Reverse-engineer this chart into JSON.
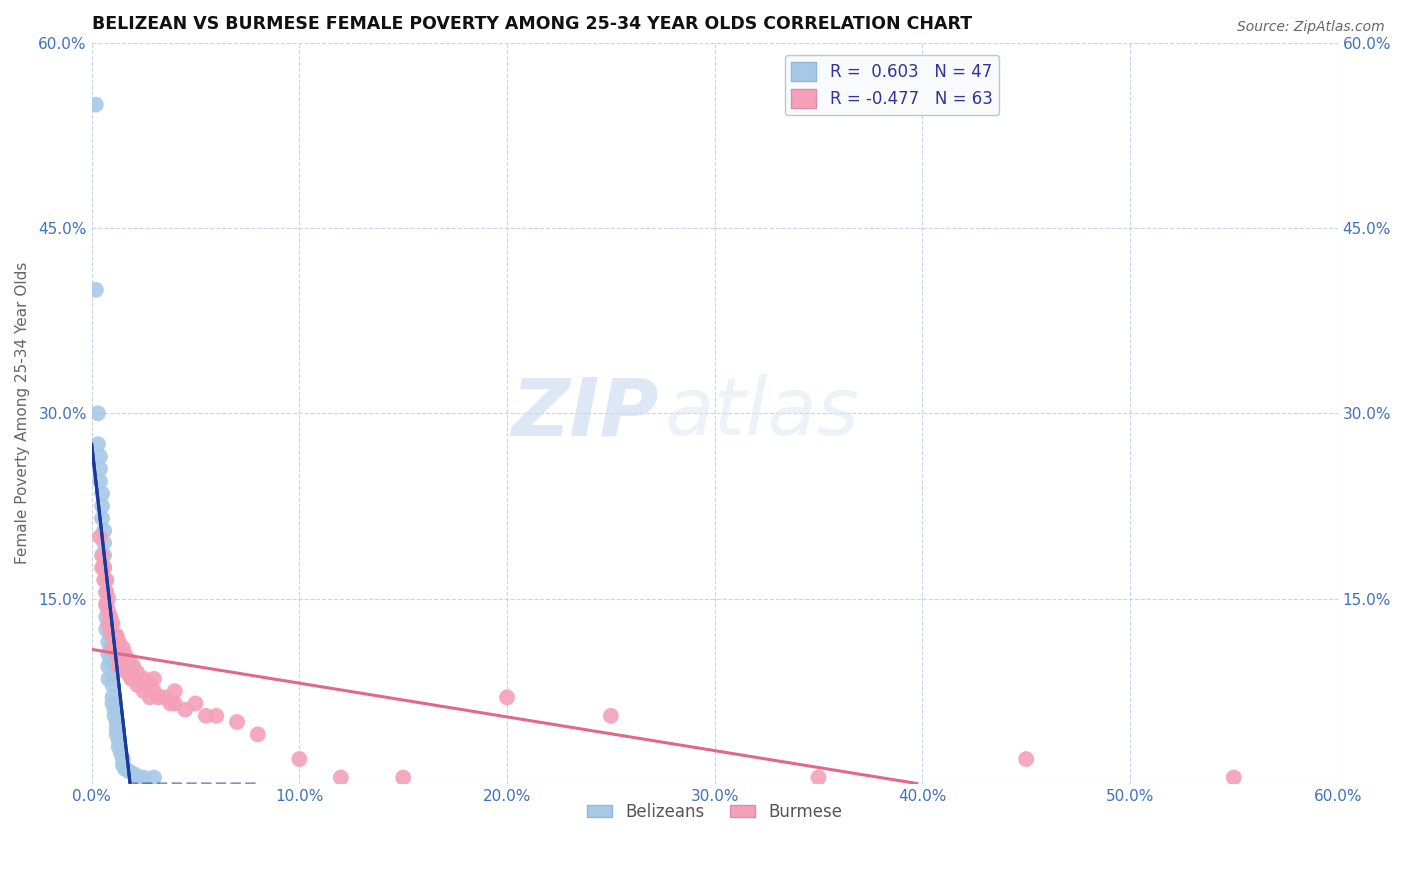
{
  "title": "BELIZEAN VS BURMESE FEMALE POVERTY AMONG 25-34 YEAR OLDS CORRELATION CHART",
  "source": "Source: ZipAtlas.com",
  "ylabel": "Female Poverty Among 25-34 Year Olds",
  "xlim": [
    0.0,
    0.6
  ],
  "ylim": [
    0.0,
    0.6
  ],
  "xticks": [
    0.0,
    0.1,
    0.2,
    0.3,
    0.4,
    0.5,
    0.6
  ],
  "yticks": [
    0.0,
    0.15,
    0.3,
    0.45,
    0.6
  ],
  "xtick_labels": [
    "0.0%",
    "10.0%",
    "20.0%",
    "30.0%",
    "40.0%",
    "50.0%",
    "60.0%"
  ],
  "left_ytick_labels": [
    "",
    "15.0%",
    "30.0%",
    "45.0%",
    "60.0%"
  ],
  "right_ytick_labels": [
    "",
    "15.0%",
    "30.0%",
    "45.0%",
    "60.0%"
  ],
  "belizean_color": "#a8c8e8",
  "burmese_color": "#f4a0b8",
  "belizean_line_color": "#1a3a9a",
  "burmese_line_color": "#e06888",
  "belizean_R": 0.603,
  "belizean_N": 47,
  "burmese_R": -0.477,
  "burmese_N": 63,
  "background_color": "#ffffff",
  "grid_color": "#c8d4e8",
  "tick_color": "#4070c0",
  "belizean_x": [
    0.002,
    0.002,
    0.003,
    0.003,
    0.004,
    0.004,
    0.004,
    0.005,
    0.005,
    0.005,
    0.006,
    0.006,
    0.006,
    0.006,
    0.007,
    0.007,
    0.007,
    0.007,
    0.007,
    0.008,
    0.008,
    0.008,
    0.008,
    0.009,
    0.009,
    0.009,
    0.009,
    0.01,
    0.01,
    0.01,
    0.01,
    0.011,
    0.011,
    0.012,
    0.012,
    0.012,
    0.013,
    0.013,
    0.014,
    0.015,
    0.015,
    0.016,
    0.018,
    0.02,
    0.022,
    0.025,
    0.03
  ],
  "belizean_y": [
    0.55,
    0.4,
    0.3,
    0.275,
    0.265,
    0.255,
    0.245,
    0.235,
    0.225,
    0.215,
    0.205,
    0.195,
    0.185,
    0.175,
    0.165,
    0.155,
    0.145,
    0.135,
    0.125,
    0.115,
    0.105,
    0.095,
    0.085,
    0.13,
    0.12,
    0.11,
    0.1,
    0.09,
    0.08,
    0.07,
    0.065,
    0.06,
    0.055,
    0.05,
    0.045,
    0.04,
    0.035,
    0.03,
    0.025,
    0.02,
    0.015,
    0.012,
    0.01,
    0.008,
    0.006,
    0.005,
    0.005
  ],
  "burmese_x": [
    0.004,
    0.005,
    0.005,
    0.006,
    0.006,
    0.007,
    0.007,
    0.007,
    0.008,
    0.008,
    0.008,
    0.009,
    0.009,
    0.01,
    0.01,
    0.01,
    0.011,
    0.011,
    0.012,
    0.012,
    0.012,
    0.013,
    0.013,
    0.013,
    0.014,
    0.014,
    0.015,
    0.015,
    0.016,
    0.016,
    0.017,
    0.018,
    0.018,
    0.019,
    0.02,
    0.02,
    0.022,
    0.022,
    0.025,
    0.025,
    0.028,
    0.028,
    0.03,
    0.03,
    0.032,
    0.035,
    0.038,
    0.04,
    0.04,
    0.045,
    0.05,
    0.055,
    0.06,
    0.07,
    0.08,
    0.1,
    0.12,
    0.15,
    0.2,
    0.25,
    0.35,
    0.45,
    0.55
  ],
  "burmese_y": [
    0.2,
    0.185,
    0.175,
    0.175,
    0.165,
    0.165,
    0.155,
    0.145,
    0.15,
    0.14,
    0.13,
    0.135,
    0.125,
    0.13,
    0.12,
    0.11,
    0.12,
    0.11,
    0.12,
    0.115,
    0.105,
    0.115,
    0.105,
    0.095,
    0.105,
    0.095,
    0.11,
    0.1,
    0.105,
    0.095,
    0.09,
    0.1,
    0.09,
    0.085,
    0.095,
    0.085,
    0.09,
    0.08,
    0.085,
    0.075,
    0.08,
    0.07,
    0.085,
    0.075,
    0.07,
    0.07,
    0.065,
    0.075,
    0.065,
    0.06,
    0.065,
    0.055,
    0.055,
    0.05,
    0.04,
    0.02,
    0.005,
    0.005,
    0.07,
    0.055,
    0.005,
    0.02,
    0.005
  ],
  "watermark_zip": "ZIP",
  "watermark_atlas": "atlas",
  "legend_label_color": "#333399"
}
